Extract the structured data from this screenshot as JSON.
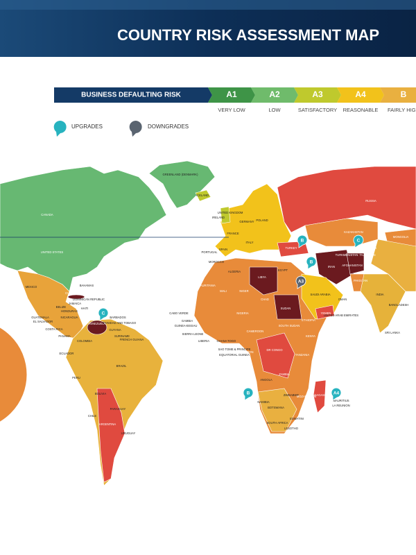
{
  "header": {
    "title": "COUNTRY RISK ASSESSMENT MAP"
  },
  "legend": {
    "heading": "BUSINESS DEFAULTING RISK",
    "levels": [
      {
        "code": "A1",
        "label": "VERY LOW",
        "color": "#3e9447"
      },
      {
        "code": "A2",
        "label": "LOW",
        "color": "#6fbb6b"
      },
      {
        "code": "A3",
        "label": "SATISFACTORY",
        "color": "#bfc92d"
      },
      {
        "code": "A4",
        "label": "REASONABLE",
        "color": "#f2c21b"
      },
      {
        "code": "B",
        "label": "FAIRLY HIGH",
        "color": "#e9b040"
      }
    ],
    "upgrades": "UPGRADES",
    "downgrades": "DOWNGRADES"
  },
  "map": {
    "countries": [
      "GREENLAND (DENMARK)",
      "ICELAND",
      "CANADA",
      "UNITED STATES",
      "MEXICO",
      "BAHAMAS",
      "CUBA",
      "DOMINICAN REPUBLIC",
      "JAMAICA",
      "HAITI",
      "BELIZE",
      "HONDURAS",
      "GUATEMALA",
      "EL SALVADOR",
      "NICARAGUA",
      "COSTA RICA",
      "PANAMA",
      "BARBADOS",
      "TRINIDAD AND TOBAGO",
      "VENEZUELA",
      "GUYANA",
      "SURINAME",
      "FRENCH GUIANA",
      "COLOMBIA",
      "ECUADOR",
      "PERU",
      "BRAZIL",
      "BOLIVIA",
      "PARAGUAY",
      "CHILE",
      "URUGUAY",
      "ARGENTINA",
      "IRELAND",
      "UNITED KINGDOM",
      "FRANCE",
      "SPAIN",
      "PORTUGAL",
      "GERMANY",
      "POLAND",
      "ITALY",
      "MOROCCO",
      "ALGERIA",
      "LIBYA",
      "EGYPT",
      "TURKEY",
      "MAURITANIA",
      "MALI",
      "NIGER",
      "CHAD",
      "SUDAN",
      "NIGERIA",
      "CAMEROON",
      "ETHIOPIA",
      "SOUTH SUDAN",
      "KENYA",
      "DR CONGO",
      "GABON",
      "TANZANIA",
      "ANGOLA",
      "ZAMBIA",
      "NAMIBIA",
      "BOTSWANA",
      "ZIMBABWE",
      "MOZAMBIQUE",
      "SOUTH AFRICA",
      "ESWATINI",
      "LESOTHO",
      "MADAGASCAR",
      "MAURITIUS",
      "LA REUNION",
      "CABO VERDE",
      "GAMBIA",
      "GUINEA-BISSAU",
      "SIERRA LEONE",
      "LIBERIA",
      "GHANA",
      "TOGO",
      "SAO TOME & PRINCIPE",
      "EQUATORIAL GUINEA",
      "RUSSIA",
      "KAZAKHSTAN",
      "UZBEKISTAN",
      "TURKMENISTAN",
      "TAJIKISTAN",
      "IRAN",
      "IRAQ",
      "AFGHANISTAN",
      "PAKISTAN",
      "SAUDI ARABIA",
      "OMAN",
      "UNITED ARAB EMIRATES",
      "YEMEN",
      "INDIA",
      "BANGLADESH",
      "SRI LANKA",
      "MONGOLIA"
    ],
    "badges": [
      {
        "label": "B",
        "kind": "upgrade"
      },
      {
        "label": "C",
        "kind": "upgrade"
      },
      {
        "label": "B",
        "kind": "upgrade"
      },
      {
        "label": "A3",
        "kind": "downgrade"
      },
      {
        "label": "C",
        "kind": "upgrade"
      },
      {
        "label": "B",
        "kind": "upgrade"
      },
      {
        "label": "A4",
        "kind": "upgrade"
      }
    ]
  }
}
